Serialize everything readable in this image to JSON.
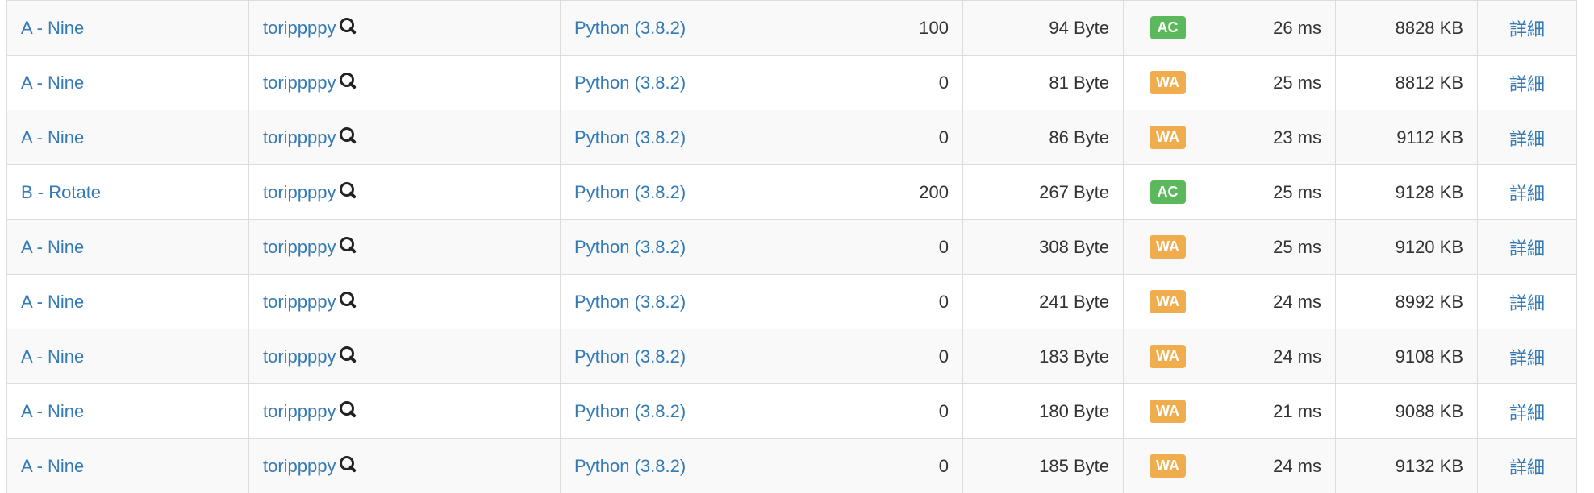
{
  "colors": {
    "link": "#337ab7",
    "ac": "#5cb85c",
    "wa": "#f0ad4e",
    "row_stripe": "#f9f9f9",
    "border": "#dddddd"
  },
  "submissions": [
    {
      "task": "A - Nine",
      "user": "torippppy",
      "language": "Python (3.8.2)",
      "score": "100",
      "code_size": "94 Byte",
      "status": "AC",
      "status_color": "#5cb85c",
      "exec_time": "26 ms",
      "memory": "8828 KB",
      "detail": "詳細"
    },
    {
      "task": "A - Nine",
      "user": "torippppy",
      "language": "Python (3.8.2)",
      "score": "0",
      "code_size": "81 Byte",
      "status": "WA",
      "status_color": "#f0ad4e",
      "exec_time": "25 ms",
      "memory": "8812 KB",
      "detail": "詳細"
    },
    {
      "task": "A - Nine",
      "user": "torippppy",
      "language": "Python (3.8.2)",
      "score": "0",
      "code_size": "86 Byte",
      "status": "WA",
      "status_color": "#f0ad4e",
      "exec_time": "23 ms",
      "memory": "9112 KB",
      "detail": "詳細"
    },
    {
      "task": "B - Rotate",
      "user": "torippppy",
      "language": "Python (3.8.2)",
      "score": "200",
      "code_size": "267 Byte",
      "status": "AC",
      "status_color": "#5cb85c",
      "exec_time": "25 ms",
      "memory": "9128 KB",
      "detail": "詳細"
    },
    {
      "task": "A - Nine",
      "user": "torippppy",
      "language": "Python (3.8.2)",
      "score": "0",
      "code_size": "308 Byte",
      "status": "WA",
      "status_color": "#f0ad4e",
      "exec_time": "25 ms",
      "memory": "9120 KB",
      "detail": "詳細"
    },
    {
      "task": "A - Nine",
      "user": "torippppy",
      "language": "Python (3.8.2)",
      "score": "0",
      "code_size": "241 Byte",
      "status": "WA",
      "status_color": "#f0ad4e",
      "exec_time": "24 ms",
      "memory": "8992 KB",
      "detail": "詳細"
    },
    {
      "task": "A - Nine",
      "user": "torippppy",
      "language": "Python (3.8.2)",
      "score": "0",
      "code_size": "183 Byte",
      "status": "WA",
      "status_color": "#f0ad4e",
      "exec_time": "24 ms",
      "memory": "9108 KB",
      "detail": "詳細"
    },
    {
      "task": "A - Nine",
      "user": "torippppy",
      "language": "Python (3.8.2)",
      "score": "0",
      "code_size": "180 Byte",
      "status": "WA",
      "status_color": "#f0ad4e",
      "exec_time": "21 ms",
      "memory": "9088 KB",
      "detail": "詳細"
    },
    {
      "task": "A - Nine",
      "user": "torippppy",
      "language": "Python (3.8.2)",
      "score": "0",
      "code_size": "185 Byte",
      "status": "WA",
      "status_color": "#f0ad4e",
      "exec_time": "24 ms",
      "memory": "9132 KB",
      "detail": "詳細"
    }
  ]
}
